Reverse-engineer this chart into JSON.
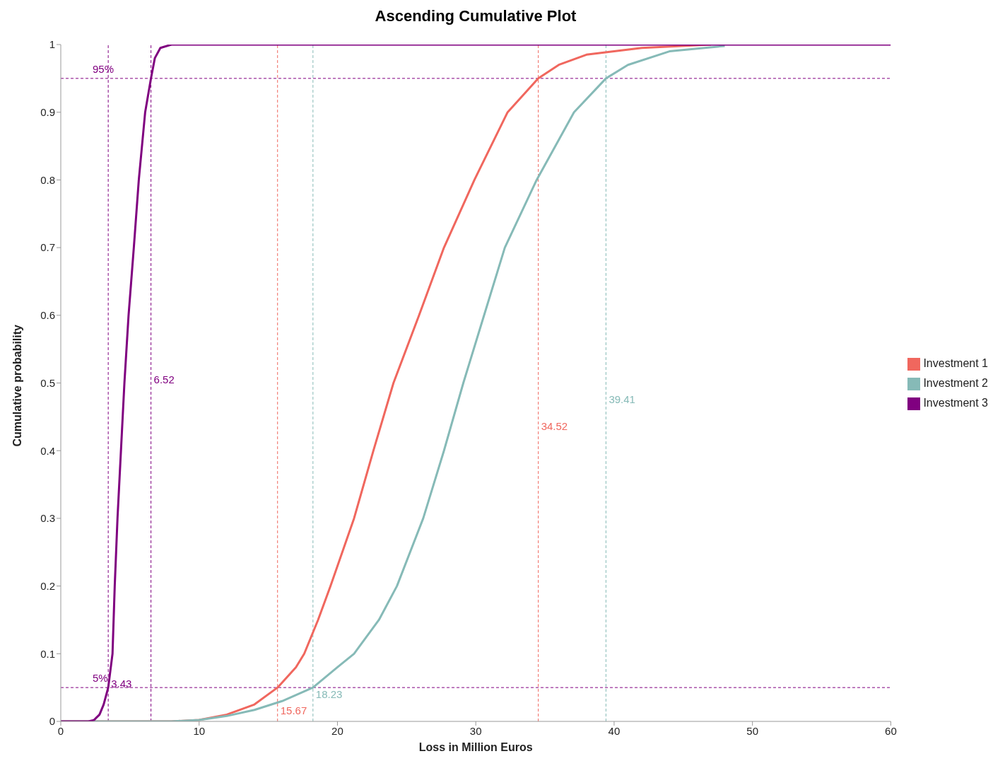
{
  "chart_data": {
    "type": "line",
    "title": "Ascending Cumulative Plot",
    "xlabel": "Loss in Million Euros",
    "ylabel": "Cumulative probability",
    "xlim": [
      0,
      60
    ],
    "xticks": [
      0,
      10,
      20,
      30,
      40,
      50,
      60
    ],
    "ylim": [
      0,
      1
    ],
    "yticks": [
      0,
      0.1,
      0.2,
      0.3,
      0.4,
      0.5,
      0.6,
      0.7,
      0.8,
      0.9,
      1.0
    ],
    "grid": false,
    "legend": "right",
    "marker": "none",
    "line_style": "solid",
    "series": [
      {
        "name": "Investment 1",
        "color": "#f0675e",
        "x": [
          0,
          8,
          10,
          12,
          14,
          15.67,
          17,
          17.6,
          18.6,
          19.5,
          21.2,
          22.6,
          24.05,
          25.9,
          27.7,
          29.9,
          32.3,
          34.52,
          36,
          38,
          42,
          47
        ],
        "values": [
          0,
          0,
          0.002,
          0.01,
          0.025,
          0.05,
          0.08,
          0.1,
          0.15,
          0.2,
          0.3,
          0.4,
          0.5,
          0.6,
          0.7,
          0.8,
          0.9,
          0.95,
          0.97,
          0.985,
          0.995,
          1
        ]
      },
      {
        "name": "Investment 2",
        "color": "#86bab7",
        "x": [
          0,
          8,
          10,
          12,
          14,
          16,
          18.23,
          20,
          21.2,
          23,
          24.3,
          26.2,
          27.7,
          29.1,
          30.6,
          32.1,
          34.4,
          37.1,
          39.41,
          41,
          44,
          48
        ],
        "values": [
          0,
          0,
          0.002,
          0.008,
          0.017,
          0.03,
          0.05,
          0.08,
          0.1,
          0.15,
          0.2,
          0.3,
          0.4,
          0.5,
          0.6,
          0.7,
          0.8,
          0.9,
          0.95,
          0.97,
          0.99,
          0.998
        ]
      },
      {
        "name": "Investment 3",
        "color": "#800080",
        "x": [
          0,
          2,
          2.4,
          2.8,
          3.1,
          3.43,
          3.74,
          3.9,
          4.1,
          4.35,
          4.6,
          4.9,
          5.28,
          5.64,
          6.1,
          6.52,
          6.8,
          7.2,
          8,
          60
        ],
        "values": [
          0,
          0,
          0.002,
          0.01,
          0.025,
          0.05,
          0.1,
          0.2,
          0.3,
          0.4,
          0.5,
          0.6,
          0.7,
          0.8,
          0.9,
          0.95,
          0.98,
          0.995,
          1,
          1
        ]
      }
    ],
    "ref_lines": [
      {
        "axis": "y",
        "value": 0.05,
        "label": "5%",
        "color": "#800080",
        "line_style": "dashed"
      },
      {
        "axis": "y",
        "value": 0.95,
        "label": "95%",
        "color": "#800080",
        "line_style": "dashed"
      },
      {
        "axis": "x",
        "value": 3.43,
        "label": "3.43",
        "color": "#800080",
        "line_style": "dashed"
      },
      {
        "axis": "x",
        "value": 6.52,
        "label": "6.52",
        "color": "#800080",
        "line_style": "dashed"
      },
      {
        "axis": "x",
        "value": 15.67,
        "label": "15.67",
        "color": "#f0675e",
        "line_style": "dashed"
      },
      {
        "axis": "x",
        "value": 34.52,
        "label": "34.52",
        "color": "#f0675e",
        "line_style": "dashed"
      },
      {
        "axis": "x",
        "value": 18.23,
        "label": "18.23",
        "color": "#86bab7",
        "line_style": "dashed"
      },
      {
        "axis": "x",
        "value": 39.41,
        "label": "39.41",
        "color": "#86bab7",
        "line_style": "dashed"
      }
    ]
  }
}
